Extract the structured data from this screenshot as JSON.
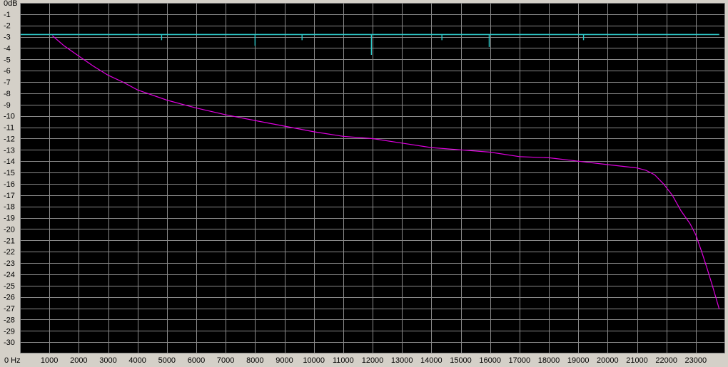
{
  "colors": {
    "background": "#000000",
    "frame": "#d4d0c8",
    "grid": "#8a8a8a",
    "primary_series": "#e000e0",
    "secondary_series": "#2ec8c8"
  },
  "chart_data": {
    "type": "line",
    "title": "",
    "xlabel": "",
    "ylabel": "",
    "xlim": [
      0,
      24000
    ],
    "ylim": [
      -31,
      0
    ],
    "grid": true,
    "x_unit_label": "Hz",
    "y_unit_label": "dB",
    "y_ticks": [
      0,
      -1,
      -2,
      -3,
      -4,
      -5,
      -6,
      -7,
      -8,
      -9,
      -10,
      -11,
      -12,
      -13,
      -14,
      -15,
      -16,
      -17,
      -18,
      -19,
      -20,
      -21,
      -22,
      -23,
      -24,
      -25,
      -26,
      -27,
      -28,
      -29,
      -30
    ],
    "y_tick_labels": [
      "0dB",
      "-1",
      "-2",
      "-3",
      "-4",
      "-5",
      "-6",
      "-7",
      "-8",
      "-9",
      "-10",
      "-11",
      "-12",
      "-13",
      "-14",
      "-15",
      "-16",
      "-17",
      "-18",
      "-19",
      "-20",
      "-21",
      "-22",
      "-23",
      "-24",
      "-25",
      "-26",
      "-27",
      "-28",
      "-29",
      "-30"
    ],
    "x_ticks": [
      0,
      1000,
      2000,
      3000,
      4000,
      5000,
      6000,
      7000,
      8000,
      9000,
      10000,
      11000,
      12000,
      13000,
      14000,
      15000,
      16000,
      17000,
      18000,
      19000,
      20000,
      21000,
      22000,
      23000
    ],
    "x_tick_labels": [
      "0 Hz",
      "1000",
      "2000",
      "3000",
      "4000",
      "5000",
      "6000",
      "7000",
      "8000",
      "9000",
      "10000",
      "11000",
      "12000",
      "13000",
      "14000",
      "15000",
      "16000",
      "17000",
      "18000",
      "19000",
      "20000",
      "21000",
      "22000",
      "23000"
    ],
    "series": [
      {
        "color": "#e000e0",
        "x": [
          1100,
          1500,
          2000,
          2500,
          3000,
          3500,
          4000,
          5000,
          6000,
          7000,
          8000,
          9000,
          10000,
          11000,
          12000,
          13000,
          14000,
          15000,
          16000,
          17000,
          18000,
          19000,
          20000,
          21000,
          21300,
          21600,
          21900,
          22200,
          22500,
          22800,
          23000,
          23200,
          23400,
          23600,
          23800
        ],
        "y": [
          -2.9,
          -3.8,
          -4.7,
          -5.6,
          -6.4,
          -7.0,
          -7.7,
          -8.6,
          -9.3,
          -9.9,
          -10.4,
          -10.9,
          -11.4,
          -11.8,
          -12.0,
          -12.4,
          -12.8,
          -13.0,
          -13.2,
          -13.6,
          -13.7,
          -14.0,
          -14.3,
          -14.6,
          -14.8,
          -15.2,
          -16.0,
          -17.0,
          -18.4,
          -19.5,
          -20.5,
          -22.0,
          -23.6,
          -25.3,
          -27.1
        ]
      },
      {
        "color": "#2ec8c8",
        "baseline": -2.8,
        "x": [
          24,
          23800
        ],
        "y": [
          -2.8,
          -2.8
        ],
        "dips": [
          {
            "x": 4820,
            "y": -3.3
          },
          {
            "x": 8000,
            "y": -3.8
          },
          {
            "x": 9600,
            "y": -3.3
          },
          {
            "x": 11960,
            "y": -4.6
          },
          {
            "x": 14360,
            "y": -3.3
          },
          {
            "x": 15970,
            "y": -3.9
          },
          {
            "x": 19180,
            "y": -3.3
          }
        ]
      }
    ]
  }
}
